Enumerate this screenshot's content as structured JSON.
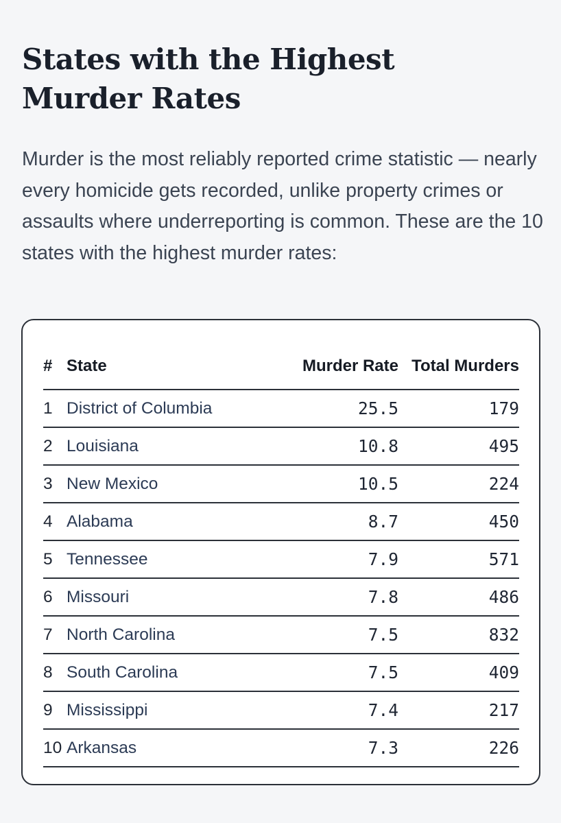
{
  "article": {
    "title": "States with the Highest Murder Rates",
    "intro": "Murder is the most reliably reported crime statistic — nearly every homicide gets recorded, unlike property crimes or assaults where underreporting is common. These are the 10 states with the highest murder rates:"
  },
  "table": {
    "headers": {
      "rank": "#",
      "state": "State",
      "murder_rate": "Murder Rate",
      "total_murders": "Total Murders"
    },
    "rows": [
      {
        "rank": "1",
        "state": "District of Columbia",
        "murder_rate": "25.5",
        "total_murders": "179"
      },
      {
        "rank": "2",
        "state": "Louisiana",
        "murder_rate": "10.8",
        "total_murders": "495"
      },
      {
        "rank": "3",
        "state": "New Mexico",
        "murder_rate": "10.5",
        "total_murders": "224"
      },
      {
        "rank": "4",
        "state": "Alabama",
        "murder_rate": "8.7",
        "total_murders": "450"
      },
      {
        "rank": "5",
        "state": "Tennessee",
        "murder_rate": "7.9",
        "total_murders": "571"
      },
      {
        "rank": "6",
        "state": "Missouri",
        "murder_rate": "7.8",
        "total_murders": "486"
      },
      {
        "rank": "7",
        "state": "North Carolina",
        "murder_rate": "7.5",
        "total_murders": "832"
      },
      {
        "rank": "8",
        "state": "South Carolina",
        "murder_rate": "7.5",
        "total_murders": "409"
      },
      {
        "rank": "9",
        "state": "Mississippi",
        "murder_rate": "7.4",
        "total_murders": "217"
      },
      {
        "rank": "10",
        "state": "Arkansas",
        "murder_rate": "7.3",
        "total_murders": "226"
      }
    ]
  }
}
